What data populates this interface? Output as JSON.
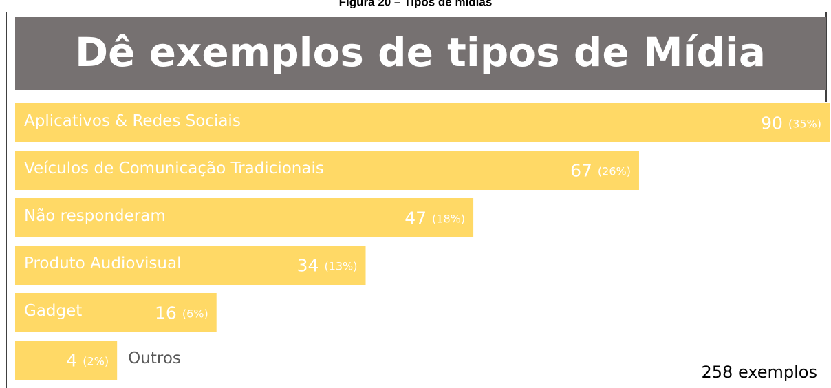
{
  "caption": "Figura 20 – Tipos de mídias",
  "chart_data": {
    "type": "bar",
    "orientation": "horizontal",
    "title": "Dê exemplos de tipos de Mídia",
    "categories": [
      "Aplicativos & Redes Sociais",
      "Veículos de Comunicação Tradicionais",
      "Não responderam",
      "Produto Audiovisual",
      "Gadget",
      "Outros"
    ],
    "values": [
      90,
      67,
      47,
      34,
      16,
      4
    ],
    "percent_labels": [
      "(35%)",
      "(26%)",
      "(18%)",
      "(13%)",
      "(6%)",
      "(2%)"
    ],
    "color": "#ffd966",
    "note": "258 exemplos"
  }
}
